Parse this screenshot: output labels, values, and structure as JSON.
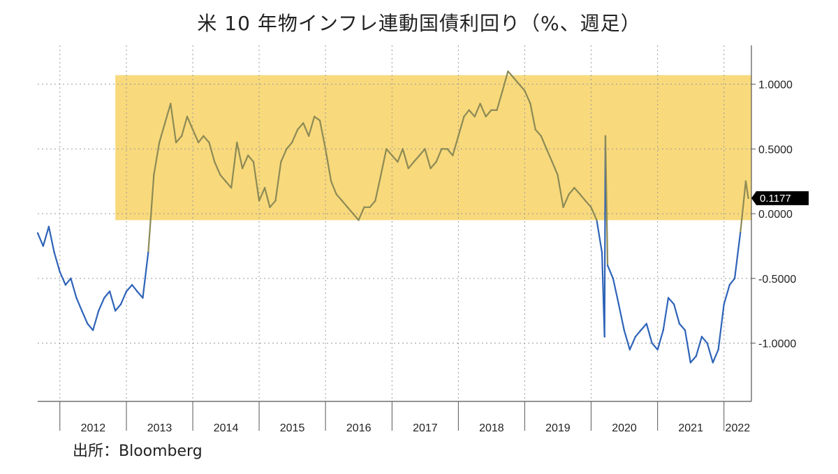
{
  "chart_data": {
    "type": "line",
    "title": "米 10 年物インフレ連動国債利回り（%、週足）",
    "xlabel": "",
    "ylabel": "",
    "source": "出所：Bloomberg",
    "x_tick_labels": [
      "2012",
      "2013",
      "2014",
      "2015",
      "2016",
      "2017",
      "2018",
      "2019",
      "2020",
      "2021",
      "2022"
    ],
    "y_tick_labels": [
      "1.0000",
      "0.5000",
      "0.0000",
      "-0.5000",
      "-1.0000"
    ],
    "y_ticks": [
      1.0,
      0.5,
      0.0,
      -0.5,
      -1.0
    ],
    "xlim": [
      "2011-09-01",
      "2022-06-01"
    ],
    "ylim": [
      -1.45,
      1.3
    ],
    "grid": true,
    "highlight_band": {
      "y_from": -0.05,
      "y_to": 1.07,
      "x_from": "2012-11-01",
      "color": "#f8d97c"
    },
    "last_value_label": "0.1177",
    "series": [
      {
        "color_above": "#8c8a55",
        "color_below": "#2e63b8",
        "points": [
          [
            "2011-09-01",
            -0.15
          ],
          [
            "2011-10-01",
            -0.25
          ],
          [
            "2011-11-01",
            -0.1
          ],
          [
            "2011-12-01",
            -0.3
          ],
          [
            "2012-01-01",
            -0.45
          ],
          [
            "2012-02-01",
            -0.55
          ],
          [
            "2012-03-01",
            -0.5
          ],
          [
            "2012-04-01",
            -0.65
          ],
          [
            "2012-05-01",
            -0.75
          ],
          [
            "2012-06-01",
            -0.85
          ],
          [
            "2012-07-01",
            -0.9
          ],
          [
            "2012-08-01",
            -0.75
          ],
          [
            "2012-09-01",
            -0.65
          ],
          [
            "2012-10-01",
            -0.6
          ],
          [
            "2012-11-01",
            -0.75
          ],
          [
            "2012-12-01",
            -0.7
          ],
          [
            "2013-01-01",
            -0.6
          ],
          [
            "2013-02-01",
            -0.55
          ],
          [
            "2013-03-01",
            -0.6
          ],
          [
            "2013-04-01",
            -0.65
          ],
          [
            "2013-05-01",
            -0.3
          ],
          [
            "2013-06-01",
            0.3
          ],
          [
            "2013-07-01",
            0.55
          ],
          [
            "2013-08-01",
            0.7
          ],
          [
            "2013-09-01",
            0.85
          ],
          [
            "2013-10-01",
            0.55
          ],
          [
            "2013-11-01",
            0.6
          ],
          [
            "2013-12-01",
            0.75
          ],
          [
            "2014-01-01",
            0.65
          ],
          [
            "2014-02-01",
            0.55
          ],
          [
            "2014-03-01",
            0.6
          ],
          [
            "2014-04-01",
            0.55
          ],
          [
            "2014-05-01",
            0.4
          ],
          [
            "2014-06-01",
            0.3
          ],
          [
            "2014-07-01",
            0.25
          ],
          [
            "2014-08-01",
            0.2
          ],
          [
            "2014-09-01",
            0.55
          ],
          [
            "2014-10-01",
            0.35
          ],
          [
            "2014-11-01",
            0.45
          ],
          [
            "2014-12-01",
            0.4
          ],
          [
            "2015-01-01",
            0.1
          ],
          [
            "2015-02-01",
            0.2
          ],
          [
            "2015-03-01",
            0.05
          ],
          [
            "2015-04-01",
            0.1
          ],
          [
            "2015-05-01",
            0.4
          ],
          [
            "2015-06-01",
            0.5
          ],
          [
            "2015-07-01",
            0.55
          ],
          [
            "2015-08-01",
            0.65
          ],
          [
            "2015-09-01",
            0.7
          ],
          [
            "2015-10-01",
            0.6
          ],
          [
            "2015-11-01",
            0.75
          ],
          [
            "2015-12-01",
            0.72
          ],
          [
            "2016-01-01",
            0.5
          ],
          [
            "2016-02-01",
            0.25
          ],
          [
            "2016-03-01",
            0.15
          ],
          [
            "2016-04-01",
            0.1
          ],
          [
            "2016-05-01",
            0.05
          ],
          [
            "2016-06-01",
            0.0
          ],
          [
            "2016-07-01",
            -0.05
          ],
          [
            "2016-08-01",
            0.05
          ],
          [
            "2016-09-01",
            0.05
          ],
          [
            "2016-10-01",
            0.1
          ],
          [
            "2016-11-01",
            0.3
          ],
          [
            "2016-12-01",
            0.5
          ],
          [
            "2017-01-01",
            0.45
          ],
          [
            "2017-02-01",
            0.4
          ],
          [
            "2017-03-01",
            0.5
          ],
          [
            "2017-04-01",
            0.35
          ],
          [
            "2017-05-01",
            0.4
          ],
          [
            "2017-06-01",
            0.45
          ],
          [
            "2017-07-01",
            0.5
          ],
          [
            "2017-08-01",
            0.35
          ],
          [
            "2017-09-01",
            0.4
          ],
          [
            "2017-10-01",
            0.5
          ],
          [
            "2017-11-01",
            0.5
          ],
          [
            "2017-12-01",
            0.45
          ],
          [
            "2018-01-01",
            0.6
          ],
          [
            "2018-02-01",
            0.75
          ],
          [
            "2018-03-01",
            0.8
          ],
          [
            "2018-04-01",
            0.75
          ],
          [
            "2018-05-01",
            0.85
          ],
          [
            "2018-06-01",
            0.75
          ],
          [
            "2018-07-01",
            0.8
          ],
          [
            "2018-08-01",
            0.8
          ],
          [
            "2018-09-01",
            0.95
          ],
          [
            "2018-10-01",
            1.1
          ],
          [
            "2018-11-01",
            1.05
          ],
          [
            "2018-12-01",
            1.0
          ],
          [
            "2019-01-01",
            0.95
          ],
          [
            "2019-02-01",
            0.85
          ],
          [
            "2019-03-01",
            0.65
          ],
          [
            "2019-04-01",
            0.6
          ],
          [
            "2019-05-01",
            0.5
          ],
          [
            "2019-06-01",
            0.4
          ],
          [
            "2019-07-01",
            0.3
          ],
          [
            "2019-08-01",
            0.05
          ],
          [
            "2019-09-01",
            0.15
          ],
          [
            "2019-10-01",
            0.2
          ],
          [
            "2019-11-01",
            0.15
          ],
          [
            "2019-12-01",
            0.1
          ],
          [
            "2020-01-01",
            0.05
          ],
          [
            "2020-02-01",
            -0.05
          ],
          [
            "2020-03-01",
            -0.3
          ],
          [
            "2020-03-15",
            -0.95
          ],
          [
            "2020-03-20",
            0.6
          ],
          [
            "2020-04-01",
            -0.4
          ],
          [
            "2020-05-01",
            -0.5
          ],
          [
            "2020-06-01",
            -0.7
          ],
          [
            "2020-07-01",
            -0.9
          ],
          [
            "2020-08-01",
            -1.05
          ],
          [
            "2020-09-01",
            -0.95
          ],
          [
            "2020-10-01",
            -0.9
          ],
          [
            "2020-11-01",
            -0.85
          ],
          [
            "2020-12-01",
            -1.0
          ],
          [
            "2021-01-01",
            -1.05
          ],
          [
            "2021-02-01",
            -0.9
          ],
          [
            "2021-03-01",
            -0.65
          ],
          [
            "2021-04-01",
            -0.7
          ],
          [
            "2021-05-01",
            -0.85
          ],
          [
            "2021-06-01",
            -0.9
          ],
          [
            "2021-07-01",
            -1.15
          ],
          [
            "2021-08-01",
            -1.1
          ],
          [
            "2021-09-01",
            -0.95
          ],
          [
            "2021-10-01",
            -1.0
          ],
          [
            "2021-11-01",
            -1.15
          ],
          [
            "2021-12-01",
            -1.05
          ],
          [
            "2022-01-01",
            -0.7
          ],
          [
            "2022-02-01",
            -0.55
          ],
          [
            "2022-03-01",
            -0.5
          ],
          [
            "2022-04-01",
            -0.15
          ],
          [
            "2022-05-01",
            0.25
          ],
          [
            "2022-05-15",
            0.12
          ]
        ]
      }
    ]
  }
}
